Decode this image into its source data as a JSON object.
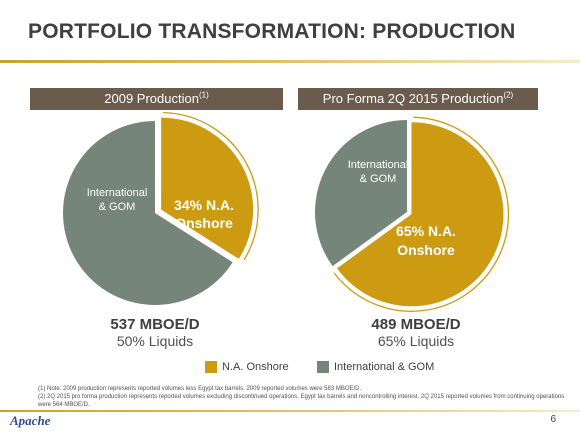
{
  "slide": {
    "title": "PORTFOLIO TRANSFORMATION: PRODUCTION",
    "page_number": "6",
    "logo_text": "Apache"
  },
  "colors": {
    "na_onshore": "#cc9b12",
    "international_gom": "#76857a",
    "header_bg": "#6b5b4c",
    "accent_rule": "#c9a227"
  },
  "left": {
    "header": "2009 Production",
    "header_note": "(1)",
    "total": "537 MBOE/D",
    "liquids": "50% Liquids"
  },
  "right": {
    "header": "Pro Forma 2Q 2015 Production",
    "header_note": "(2)",
    "total": "489 MBOE/D",
    "liquids": "65% Liquids"
  },
  "legend": [
    {
      "label": "N.A. Onshore",
      "color": "#cc9b12"
    },
    {
      "label": "International & GOM",
      "color": "#76857a"
    }
  ],
  "chart_data": [
    {
      "type": "pie",
      "title": "2009 Production(1)",
      "slices": [
        {
          "name": "N.A. Onshore",
          "value": 34,
          "label_lines": [
            "34% N.A.",
            "Onshore"
          ],
          "color": "#cc9b12",
          "exploded": true
        },
        {
          "name": "International & GOM",
          "value": 66,
          "label_lines": [
            "International",
            "& GOM"
          ],
          "color": "#76857a",
          "exploded": false
        }
      ],
      "total_label": "537 MBOE/D",
      "sub_label": "50% Liquids"
    },
    {
      "type": "pie",
      "title": "Pro Forma 2Q 2015 Production(2)",
      "slices": [
        {
          "name": "N.A. Onshore",
          "value": 65,
          "label_lines": [
            "65% N.A.",
            "Onshore"
          ],
          "color": "#cc9b12",
          "exploded": true
        },
        {
          "name": "International & GOM",
          "value": 35,
          "label_lines": [
            "International",
            "& GOM"
          ],
          "color": "#76857a",
          "exploded": false
        }
      ],
      "total_label": "489 MBOE/D",
      "sub_label": "65% Liquids"
    }
  ],
  "notes": [
    "(1) Note: 2009 production represents reported volumes less Egypt tax barrels. 2009 reported volumes were 583 MBOE/D.",
    "(2) 2Q 2015 pro forma production represents reported volumes excluding discontinued operations, Egypt tax barrels and noncontrolling interest. 2Q 2015 reported volumes from continuing operations were 564 MBOE/D."
  ]
}
